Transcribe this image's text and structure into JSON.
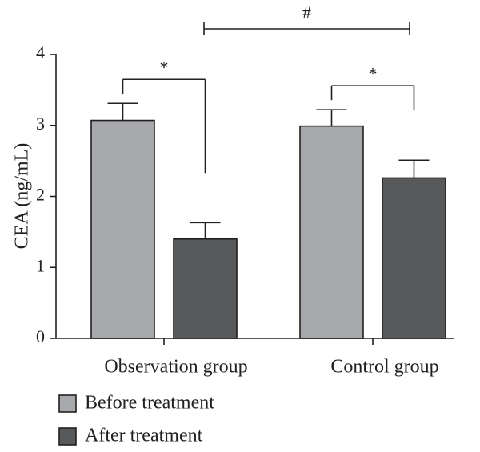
{
  "chart_data": {
    "type": "bar",
    "title": "",
    "xlabel": "",
    "ylabel": "CEA (ng/mL)",
    "ylim": [
      0,
      4
    ],
    "yticks": [
      0,
      1,
      2,
      3,
      4
    ],
    "categories": [
      "Observation group",
      "Control group"
    ],
    "series": [
      {
        "name": "Before treatment",
        "color": "#a7a9ac",
        "values": [
          3.07,
          2.99
        ],
        "errors": [
          0.24,
          0.23
        ]
      },
      {
        "name": "After treatment",
        "color": "#58595b",
        "values": [
          1.4,
          2.26
        ],
        "errors": [
          0.23,
          0.25
        ]
      }
    ],
    "annotations": [
      {
        "label": "*",
        "type": "within-group",
        "category": "Observation group"
      },
      {
        "label": "*",
        "type": "within-group",
        "category": "Control group"
      },
      {
        "label": "#",
        "type": "between-group",
        "categories": [
          "Observation group",
          "Control group"
        ]
      }
    ],
    "legend_position": "bottom-left"
  }
}
